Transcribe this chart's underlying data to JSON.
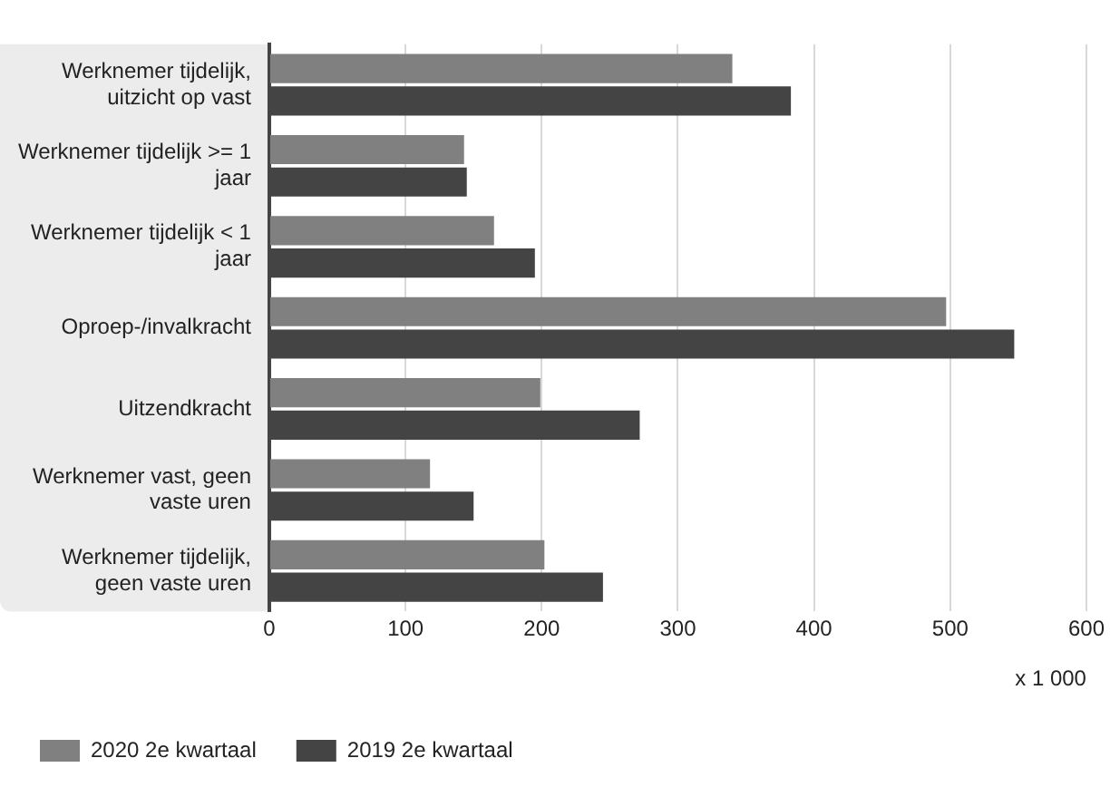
{
  "chart_data": {
    "type": "bar",
    "orientation": "horizontal",
    "categories": [
      "Werknemer tijdelijk, uitzicht op vast",
      "Werknemer tijdelijk >= 1 jaar",
      "Werknemer tijdelijk < 1 jaar",
      "Oproep-/invalkracht",
      "Uitzendkracht",
      "Werknemer vast, geen vaste uren",
      "Werknemer tijdelijk, geen vaste uren"
    ],
    "series": [
      {
        "name": "2020 2e kwartaal",
        "color": "#808080",
        "values": [
          340,
          143,
          165,
          497,
          199,
          118,
          202
        ]
      },
      {
        "name": "2019 2e kwartaal",
        "color": "#444444",
        "values": [
          383,
          145,
          195,
          547,
          272,
          150,
          245
        ]
      }
    ],
    "xlim": [
      0,
      600
    ],
    "xticks": [
      0,
      100,
      200,
      300,
      400,
      500,
      600
    ],
    "xlabel": "x 1 000",
    "grid": "x",
    "legend": "bottom left"
  }
}
